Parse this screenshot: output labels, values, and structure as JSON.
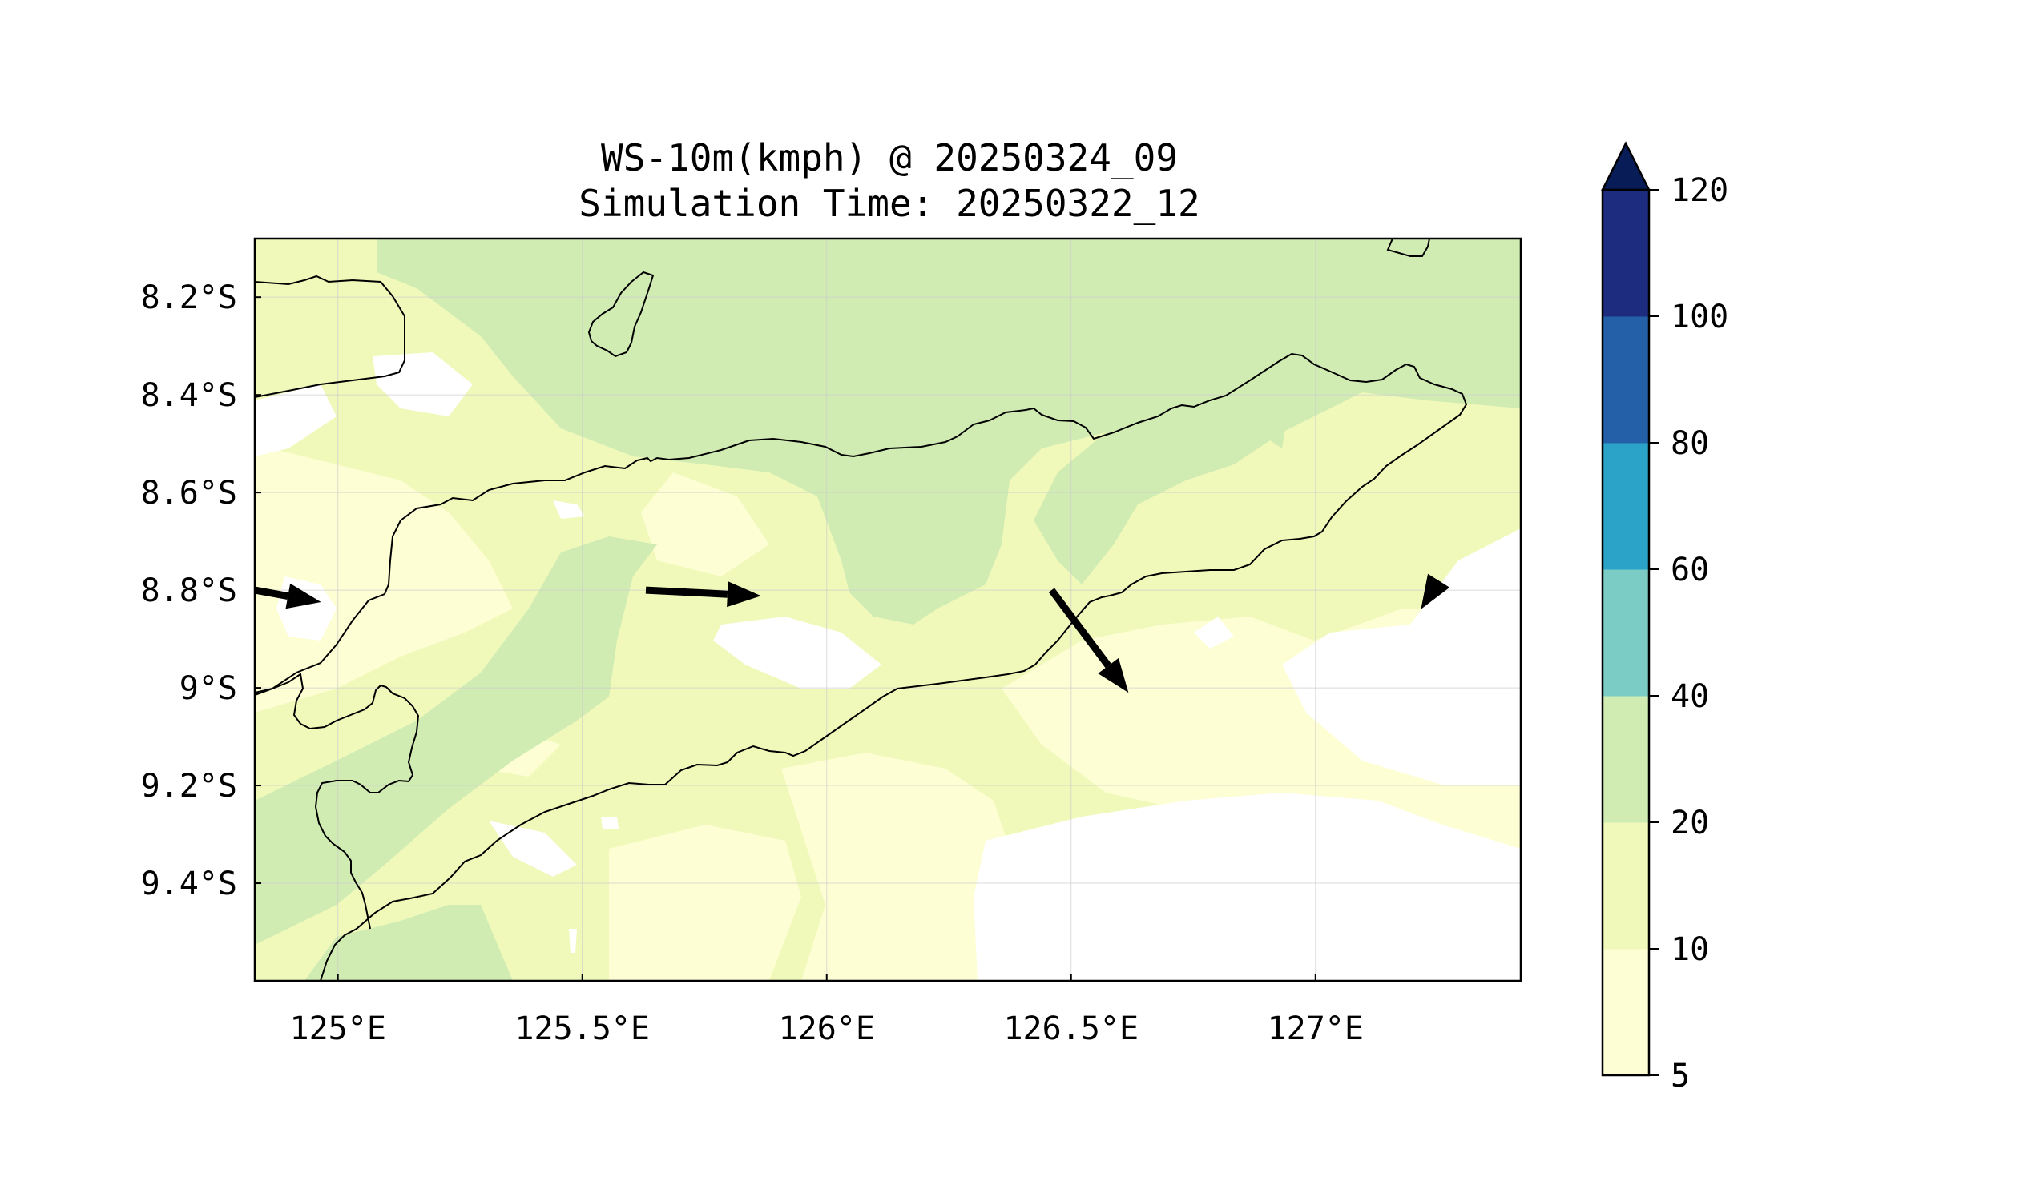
{
  "title": {
    "line1": "WS-10m(kmph) @ 20250324_09",
    "line2": "Simulation Time: 20250322_12"
  },
  "axes": {
    "lon_min": 124.83,
    "lon_max": 127.42,
    "lat_min": -9.6,
    "lat_max": -8.08,
    "xticks": [
      {
        "value": 125.0,
        "label": "125°E"
      },
      {
        "value": 125.5,
        "label": "125.5°E"
      },
      {
        "value": 126.0,
        "label": "126°E"
      },
      {
        "value": 126.5,
        "label": "126.5°E"
      },
      {
        "value": 127.0,
        "label": "127°E"
      }
    ],
    "yticks": [
      {
        "value": -8.2,
        "label": "8.2°S"
      },
      {
        "value": -8.4,
        "label": "8.4°S"
      },
      {
        "value": -8.6,
        "label": "8.6°S"
      },
      {
        "value": -8.8,
        "label": "8.8°S"
      },
      {
        "value": -9.0,
        "label": "9°S"
      },
      {
        "value": -9.2,
        "label": "9.2°S"
      },
      {
        "value": -9.4,
        "label": "9.4°S"
      }
    ],
    "grid": true
  },
  "colorbar": {
    "extend": "max",
    "levels": [
      {
        "value": 5,
        "label": "5"
      },
      {
        "value": 10,
        "label": "10"
      },
      {
        "value": 20,
        "label": "20"
      },
      {
        "value": 40,
        "label": "40"
      },
      {
        "value": 60,
        "label": "60"
      },
      {
        "value": 80,
        "label": "80"
      },
      {
        "value": 100,
        "label": "100"
      },
      {
        "value": 120,
        "label": "120"
      }
    ],
    "colors": [
      "#fdfed4",
      "#f0f9ba",
      "#d0ecb3",
      "#7accc4",
      "#2ba3c9",
      "#2460a8",
      "#1d2c7f"
    ],
    "over_color": "#081d58"
  },
  "speed_colors": {
    "lt5": "#ffffff",
    "c5_10": "#fdfed4",
    "c10_20": "#f0f9ba",
    "c20_40": "#d0ecb3"
  },
  "wind_vectors": [
    {
      "lon": 124.83,
      "lat": -8.8,
      "u": 1.0,
      "v": -0.18,
      "mag": 0.42
    },
    {
      "lon": 125.63,
      "lat": -8.8,
      "u": 1.0,
      "v": -0.05,
      "mag": 0.72
    },
    {
      "lon": 126.46,
      "lat": -8.8,
      "u": 0.6,
      "v": -0.8,
      "mag": 0.8
    },
    {
      "lon": 127.24,
      "lat": -8.8,
      "u": -0.5,
      "v": -0.8,
      "mag": 0.14
    }
  ]
}
